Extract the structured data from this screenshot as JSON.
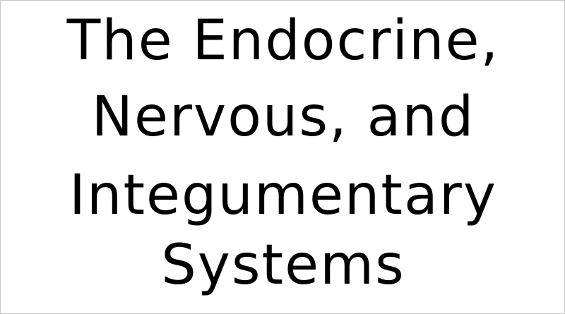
{
  "slide": {
    "title_lines": [
      "The Endocrine,",
      "Nervous, and",
      "Integumentary",
      "Systems"
    ]
  }
}
